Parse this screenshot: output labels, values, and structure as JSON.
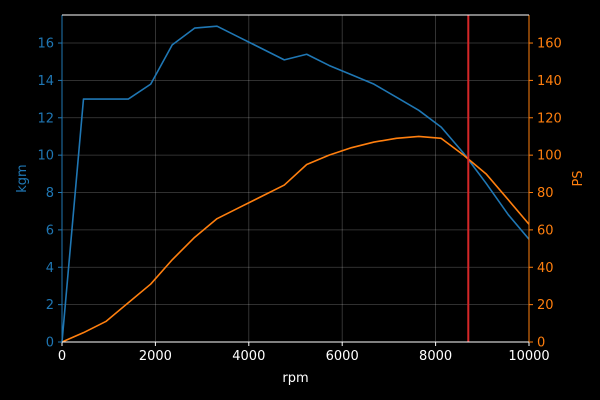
{
  "chart_data": {
    "type": "line",
    "xlabel": "rpm",
    "ylabel_left": "kgm",
    "ylabel_right": "PS",
    "xlim": [
      0,
      10000
    ],
    "ylim_left": [
      0,
      17.5
    ],
    "ylim_right": [
      0,
      175
    ],
    "xticks": [
      "0",
      "2000",
      "4000",
      "6000",
      "8000",
      "10000"
    ],
    "yticks_left": [
      "0",
      "2",
      "4",
      "6",
      "8",
      "10",
      "12",
      "14",
      "16"
    ],
    "yticks_right": [
      "0",
      "20",
      "40",
      "60",
      "80",
      "100",
      "120",
      "140",
      "160"
    ],
    "grid": true,
    "series": [
      {
        "axis": "left",
        "color": "#1f77b4",
        "x": [
          0,
          460,
          1420,
          1900,
          2360,
          2840,
          3320,
          3800,
          4280,
          4760,
          5240,
          5720,
          6200,
          6680,
          7160,
          7640,
          8120,
          8600,
          9080,
          9560,
          10000
        ],
        "y": [
          0,
          13,
          13,
          13.8,
          15.9,
          16.8,
          16.9,
          16.3,
          15.7,
          15.1,
          15.4,
          14.8,
          14.3,
          13.8,
          13.1,
          12.4,
          11.5,
          10.1,
          8.5,
          6.8,
          5.5
        ]
      },
      {
        "axis": "right",
        "color": "#ff7f0e",
        "x": [
          0,
          460,
          940,
          1420,
          1900,
          2360,
          2840,
          3320,
          3800,
          4280,
          4760,
          5240,
          5720,
          6200,
          6680,
          7160,
          7640,
          8120,
          8600,
          9080,
          9560,
          10000
        ],
        "y": [
          0,
          5,
          11,
          21,
          31,
          44,
          56,
          66,
          72,
          78,
          84,
          95,
          100,
          104,
          107,
          109,
          110,
          109,
          100,
          90,
          76,
          63
        ]
      }
    ],
    "vline": {
      "x": 8700,
      "color": "#d62728"
    }
  }
}
